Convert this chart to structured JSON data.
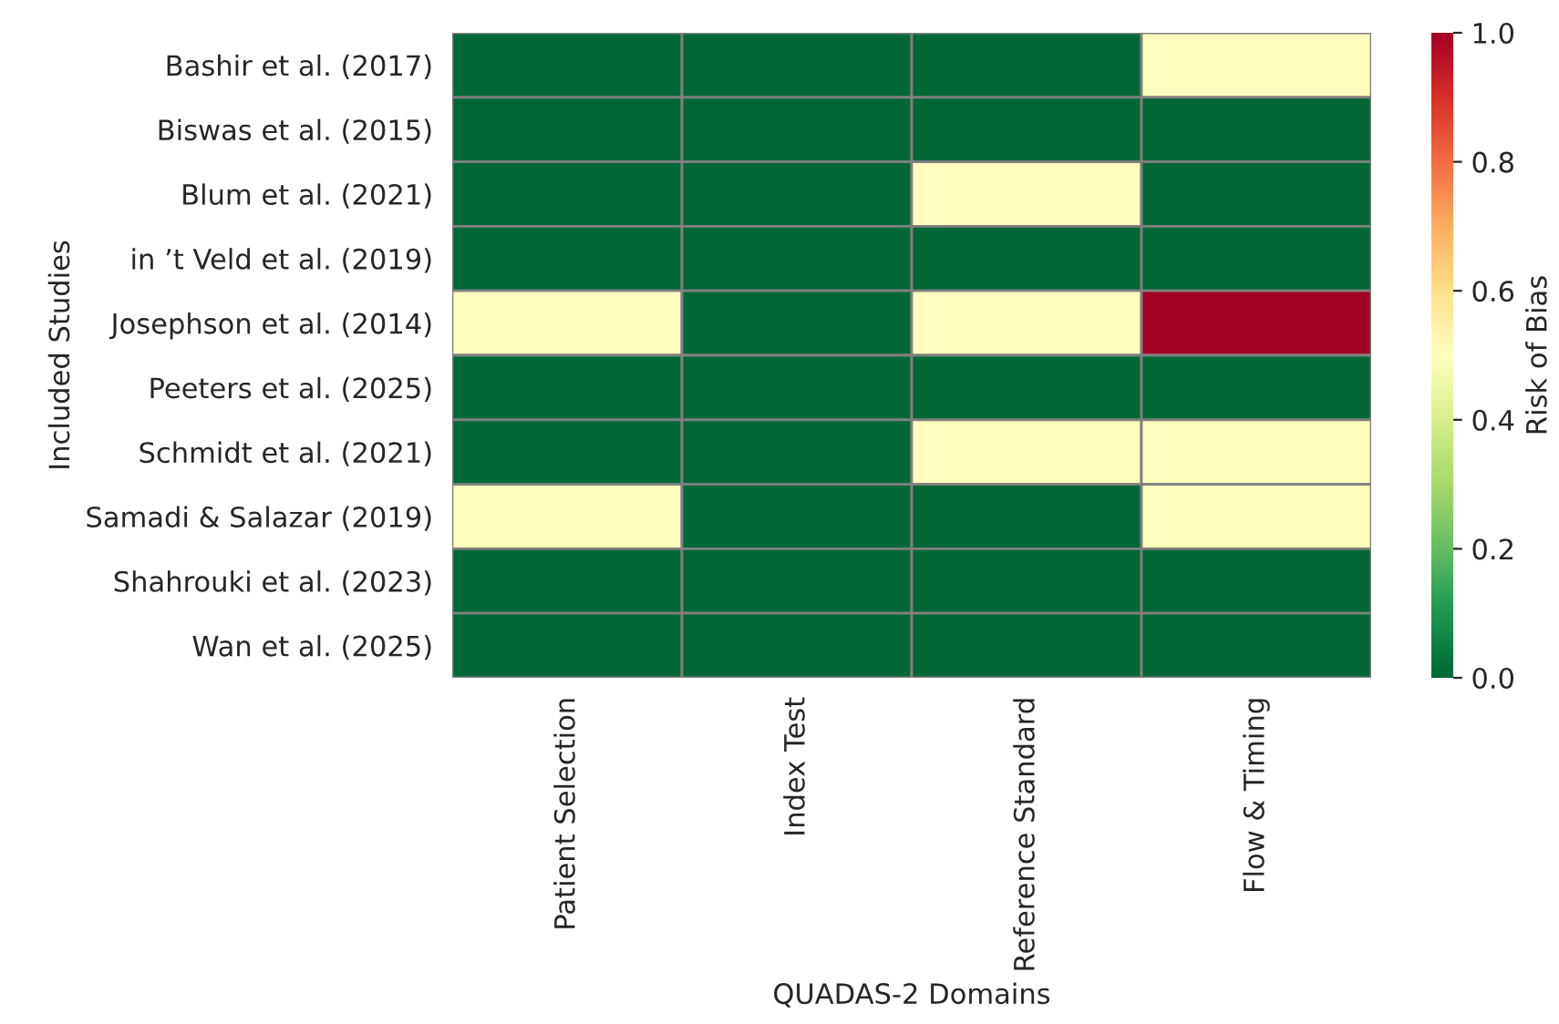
{
  "chart_data": {
    "type": "heatmap",
    "xlabel": "QUADAS-2 Domains",
    "ylabel": "Included Studies",
    "clabel": "Risk of Bias",
    "categories": [
      "Patient Selection",
      "Index Test",
      "Reference Standard",
      "Flow & Timing"
    ],
    "y_categories": [
      "Bashir et al. (2017)",
      "Biswas et al. (2015)",
      "Blum et al. (2021)",
      "in ’t Veld et al. (2019)",
      "Josephson et al. (2014)",
      "Peeters et al. (2025)",
      "Schmidt et al. (2021)",
      "Samadi & Salazar (2019)",
      "Shahrouki et al. (2023)",
      "Wan et al. (2025)"
    ],
    "cells": [
      [
        0,
        0,
        0,
        0.5
      ],
      [
        0,
        0,
        0,
        0
      ],
      [
        0,
        0,
        0.5,
        0
      ],
      [
        0,
        0,
        0,
        0
      ],
      [
        0.5,
        0,
        0.5,
        1
      ],
      [
        0,
        0,
        0,
        0
      ],
      [
        0,
        0,
        0.5,
        0.5
      ],
      [
        0.5,
        0,
        0,
        0.5
      ],
      [
        0,
        0,
        0,
        0
      ],
      [
        0,
        0,
        0,
        0
      ]
    ],
    "clim": [
      0,
      1
    ],
    "cticks": [
      {
        "value": 0,
        "label": "0.0"
      },
      {
        "value": 0.2,
        "label": "0.2"
      },
      {
        "value": 0.4,
        "label": "0.4"
      },
      {
        "value": 0.6,
        "label": "0.6"
      },
      {
        "value": 0.8,
        "label": "0.8"
      },
      {
        "value": 1,
        "label": "1.0"
      }
    ]
  }
}
